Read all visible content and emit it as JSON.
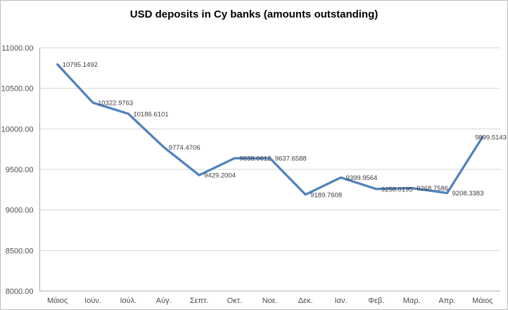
{
  "title": "USD deposits in Cy banks (amounts outstanding)",
  "chart_data": {
    "type": "line",
    "title": "USD deposits in Cy banks (amounts outstanding)",
    "xlabel": "",
    "ylabel": "",
    "categories": [
      "Μάιος",
      "Ιούν.",
      "Ιούλ.",
      "Αύγ.",
      "Σεπτ.",
      "Οκτ.",
      "Νοε.",
      "Δεκ.",
      "Ιαν.",
      "Φεβ.",
      "Μαρ.",
      "Απρ.",
      "Μάιος"
    ],
    "series": [
      {
        "name": "USD deposits",
        "values": [
          10795.1492,
          10322.9763,
          10186.6101,
          9774.4706,
          9429.2004,
          9638.0612,
          9637.6588,
          9189.7608,
          9399.9564,
          9258.0195,
          9268.7586,
          9208.3383,
          9899.5143
        ],
        "data_labels": [
          "10795.1492",
          "10322.9763",
          "10186.6101",
          "9774.4706",
          "9429.2004",
          "9638.0612",
          "9637.6588",
          "9189.7608",
          "9399.9564",
          "9258.0195",
          "9268.7586",
          "9208.3383",
          "9899.5143"
        ]
      }
    ],
    "ylim": [
      8000,
      11000
    ],
    "ytick_step": 500,
    "ytick_labels": [
      "8000.00",
      "8500.00",
      "9000.00",
      "9500.00",
      "10000.00",
      "10500.00",
      "11000.00"
    ],
    "grid": true,
    "legend": "none",
    "colors": {
      "line": "#4f81bd",
      "gridline": "#d6d6d6",
      "axis_line": "#ababab",
      "axis_text": "#4d4d4d",
      "data_label_text": "#3d3d3d",
      "background": "#ffffff"
    }
  }
}
